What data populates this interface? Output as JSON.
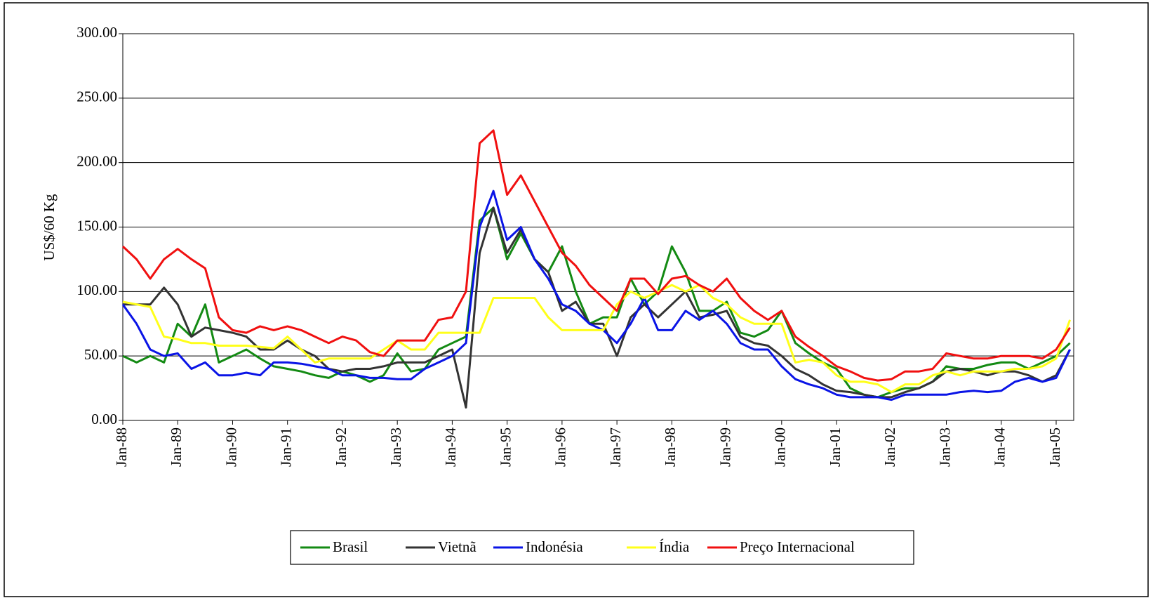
{
  "chart_data": {
    "type": "line",
    "y_label": "US$/60 Kg",
    "categories": [
      "Jan-88",
      null,
      null,
      null,
      "Jan-89",
      null,
      null,
      null,
      "Jan-90",
      null,
      null,
      null,
      "Jan-91",
      null,
      null,
      null,
      "Jan-92",
      null,
      null,
      null,
      "Jan-93",
      null,
      null,
      null,
      "Jan-94",
      null,
      null,
      null,
      "Jan-95",
      null,
      null,
      null,
      "Jan-96",
      null,
      null,
      null,
      "Jan-97",
      null,
      null,
      null,
      "Jan-98",
      null,
      null,
      null,
      "Jan-99",
      null,
      null,
      null,
      "Jan-00",
      null,
      null,
      null,
      "Jan-01",
      null,
      null,
      null,
      "Jan-02",
      null,
      null,
      null,
      "Jan-03",
      null,
      null,
      null,
      "Jan-04",
      null,
      null,
      null,
      "Jan-05",
      null
    ],
    "series": [
      {
        "name": "Brasil",
        "color": "#138a13",
        "values": [
          50,
          45,
          50,
          45,
          75,
          65,
          90,
          45,
          50,
          55,
          48,
          42,
          40,
          38,
          35,
          33,
          38,
          35,
          30,
          35,
          52,
          38,
          40,
          55,
          60,
          65,
          155,
          165,
          125,
          145,
          125,
          115,
          135,
          100,
          75,
          80,
          80,
          110,
          90,
          100,
          135,
          115,
          85,
          85,
          92,
          68,
          65,
          70,
          85,
          60,
          52,
          45,
          40,
          25,
          20,
          18,
          22,
          25,
          25,
          30,
          42,
          40,
          40,
          43,
          45,
          45,
          40,
          45,
          50,
          60
        ]
      },
      {
        "name": "Vietnã",
        "color": "#333333",
        "values": [
          90,
          90,
          90,
          103,
          90,
          65,
          72,
          70,
          68,
          65,
          55,
          55,
          62,
          55,
          50,
          40,
          38,
          40,
          40,
          42,
          45,
          45,
          45,
          50,
          55,
          10,
          130,
          165,
          130,
          148,
          125,
          115,
          85,
          92,
          75,
          75,
          50,
          80,
          90,
          80,
          90,
          100,
          80,
          82,
          85,
          65,
          60,
          58,
          50,
          40,
          35,
          28,
          23,
          22,
          20,
          18,
          18,
          22,
          25,
          30,
          38,
          40,
          38,
          35,
          38,
          38,
          35,
          30,
          35,
          55
        ]
      },
      {
        "name": "Indonésia",
        "color": "#0a14e6",
        "values": [
          90,
          75,
          55,
          50,
          52,
          40,
          45,
          35,
          35,
          37,
          35,
          45,
          45,
          44,
          42,
          40,
          35,
          35,
          33,
          33,
          32,
          32,
          40,
          45,
          50,
          60,
          150,
          178,
          140,
          150,
          125,
          110,
          90,
          85,
          75,
          70,
          60,
          75,
          95,
          70,
          70,
          85,
          78,
          85,
          75,
          60,
          55,
          55,
          42,
          32,
          28,
          25,
          20,
          18,
          18,
          18,
          16,
          20,
          20,
          20,
          20,
          22,
          23,
          22,
          23,
          30,
          33,
          30,
          33,
          55
        ]
      },
      {
        "name": "Índia",
        "color": "#ffff1a",
        "values": [
          92,
          90,
          88,
          65,
          63,
          60,
          60,
          58,
          58,
          58,
          57,
          56,
          65,
          55,
          45,
          48,
          48,
          48,
          48,
          55,
          62,
          55,
          55,
          68,
          68,
          68,
          68,
          95,
          95,
          95,
          95,
          80,
          70,
          70,
          70,
          70,
          90,
          100,
          95,
          100,
          105,
          100,
          105,
          95,
          90,
          80,
          75,
          75,
          75,
          45,
          47,
          45,
          35,
          30,
          30,
          28,
          22,
          28,
          28,
          35,
          38,
          35,
          38,
          38,
          38,
          40,
          40,
          42,
          48,
          78
        ]
      },
      {
        "name": "Preço Internacional",
        "color": "#f01010",
        "values": [
          135,
          125,
          110,
          125,
          133,
          125,
          118,
          80,
          70,
          68,
          73,
          70,
          73,
          70,
          65,
          60,
          65,
          62,
          53,
          50,
          62,
          62,
          62,
          78,
          80,
          100,
          215,
          225,
          175,
          190,
          170,
          150,
          130,
          120,
          105,
          95,
          85,
          110,
          110,
          98,
          110,
          112,
          105,
          100,
          110,
          95,
          85,
          78,
          85,
          65,
          57,
          50,
          42,
          38,
          33,
          31,
          32,
          38,
          38,
          40,
          52,
          50,
          48,
          48,
          50,
          50,
          50,
          48,
          55,
          72
        ]
      }
    ],
    "ylim": [
      0,
      300
    ],
    "yticks": [
      {
        "value": 0,
        "label": "0.00"
      },
      {
        "value": 50,
        "label": "50.00"
      },
      {
        "value": 100,
        "label": "100.00"
      },
      {
        "value": 150,
        "label": "150.00"
      },
      {
        "value": 200,
        "label": "200.00"
      },
      {
        "value": 250,
        "label": "250.00"
      },
      {
        "value": 300,
        "label": "300.00"
      }
    ],
    "grid": true,
    "legend": "bottom"
  }
}
